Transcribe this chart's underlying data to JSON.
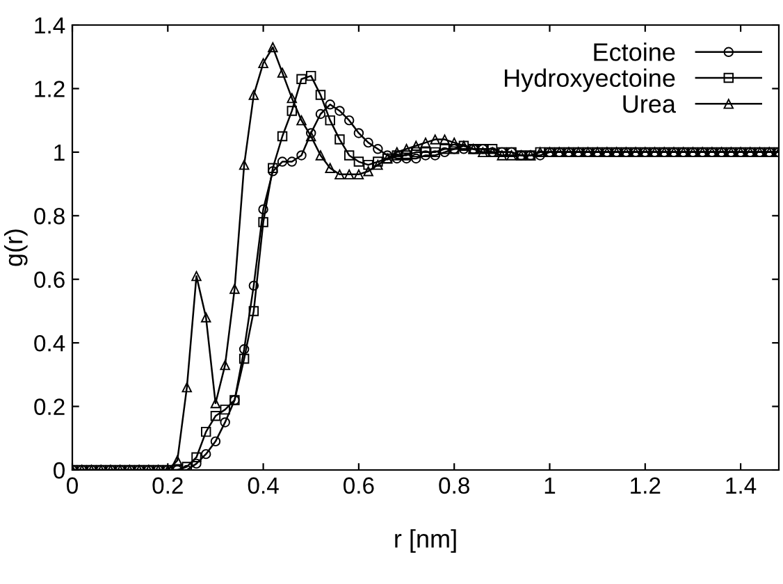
{
  "chart_data": {
    "type": "line",
    "xlabel": "r [nm]",
    "ylabel": "g(r)",
    "x": [
      0,
      0.02,
      0.04,
      0.06,
      0.08,
      0.1,
      0.12,
      0.14,
      0.16,
      0.18,
      0.2,
      0.22,
      0.24,
      0.26,
      0.28,
      0.3,
      0.32,
      0.34,
      0.36,
      0.38,
      0.4,
      0.42,
      0.44,
      0.46,
      0.48,
      0.5,
      0.52,
      0.54,
      0.56,
      0.58,
      0.6,
      0.62,
      0.64,
      0.66,
      0.68,
      0.7,
      0.72,
      0.74,
      0.76,
      0.78,
      0.8,
      0.82,
      0.84,
      0.86,
      0.88,
      0.9,
      0.92,
      0.94,
      0.96,
      0.98,
      1,
      1.02,
      1.04,
      1.06,
      1.08,
      1.1,
      1.12,
      1.14,
      1.16,
      1.18,
      1.2,
      1.22,
      1.24,
      1.26,
      1.28,
      1.3,
      1.32,
      1.34,
      1.36,
      1.38,
      1.4,
      1.42,
      1.44,
      1.46,
      1.48
    ],
    "series": [
      {
        "name": "Ectoine",
        "color": "#000000",
        "marker": "circle",
        "values": [
          0,
          0,
          0,
          0,
          0,
          0,
          0,
          0,
          0,
          0,
          0,
          0,
          0,
          0.02,
          0.05,
          0.09,
          0.15,
          0.22,
          0.38,
          0.58,
          0.82,
          0.94,
          0.97,
          0.97,
          0.99,
          1.06,
          1.12,
          1.15,
          1.13,
          1.1,
          1.06,
          1.03,
          1.01,
          0.99,
          0.98,
          0.98,
          0.98,
          0.99,
          0.99,
          1,
          1.01,
          1.01,
          1.01,
          1.01,
          1,
          1,
          1,
          0.99,
          0.99,
          0.99,
          1,
          1,
          1,
          1,
          1,
          1,
          1,
          1,
          1,
          1,
          1,
          1,
          1,
          1,
          1,
          1,
          1,
          1,
          1,
          1,
          1,
          1,
          1,
          1,
          1
        ]
      },
      {
        "name": "Hydroxyectoine",
        "color": "#000000",
        "marker": "square",
        "values": [
          0,
          0,
          0,
          0,
          0,
          0,
          0,
          0,
          0,
          0,
          0,
          0,
          0.01,
          0.04,
          0.12,
          0.17,
          0.19,
          0.22,
          0.35,
          0.5,
          0.78,
          0.95,
          1.05,
          1.13,
          1.23,
          1.24,
          1.18,
          1.1,
          1.04,
          0.99,
          0.97,
          0.96,
          0.97,
          0.98,
          0.99,
          0.99,
          1,
          1,
          1,
          1.01,
          1.01,
          1.02,
          1.01,
          1.01,
          1.01,
          1,
          1,
          0.99,
          0.99,
          1,
          1,
          1,
          1,
          1,
          1,
          1,
          1,
          1,
          1,
          1,
          1,
          1,
          1,
          1,
          1,
          1,
          1,
          1,
          1,
          1,
          1,
          1,
          1,
          1,
          1
        ]
      },
      {
        "name": "Urea",
        "color": "#000000",
        "marker": "triangle",
        "values": [
          0,
          0,
          0,
          0,
          0,
          0,
          0,
          0,
          0,
          0,
          0,
          0.03,
          0.26,
          0.61,
          0.48,
          0.21,
          0.33,
          0.57,
          0.96,
          1.18,
          1.28,
          1.33,
          1.25,
          1.17,
          1.1,
          1.05,
          0.99,
          0.95,
          0.93,
          0.93,
          0.93,
          0.94,
          0.96,
          0.98,
          1,
          1.01,
          1.02,
          1.03,
          1.04,
          1.04,
          1.03,
          1.02,
          1.01,
          1,
          1,
          0.99,
          0.99,
          0.99,
          0.99,
          1,
          1,
          1,
          1,
          1,
          1,
          1,
          1,
          1,
          1,
          1,
          1,
          1,
          1,
          1,
          1,
          1,
          1,
          1,
          1,
          1,
          1,
          1,
          1,
          1,
          1
        ]
      }
    ],
    "xlim": [
      0,
      1.48
    ],
    "ylim": [
      0,
      1.4
    ],
    "xticks": [
      0,
      0.2,
      0.4,
      0.6,
      0.8,
      1,
      1.2,
      1.4
    ],
    "yticks": [
      0,
      0.2,
      0.4,
      0.6,
      0.8,
      1,
      1.2,
      1.4
    ],
    "grid": false,
    "legend": "top right",
    "line_style": "solid"
  }
}
